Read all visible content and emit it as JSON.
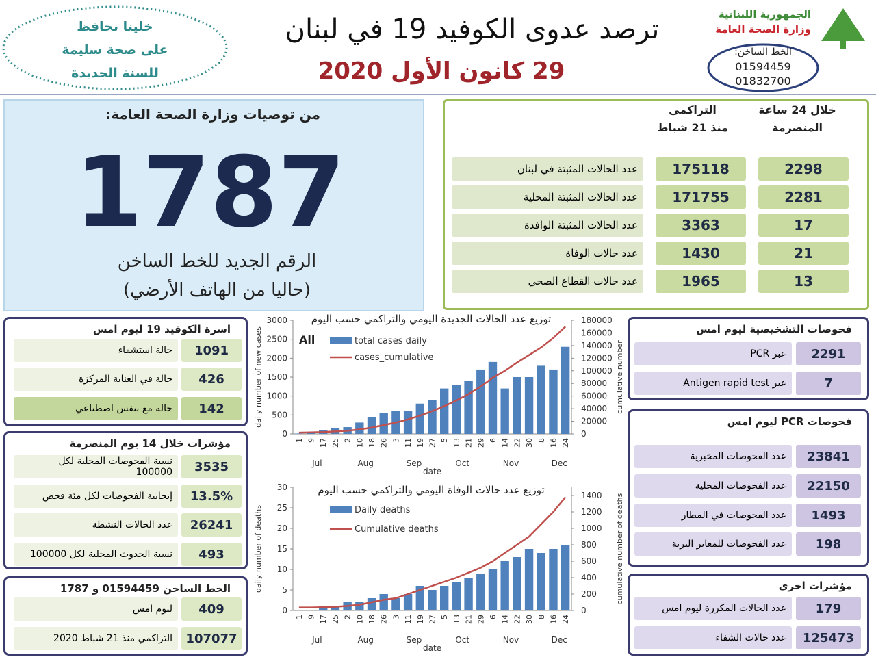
{
  "header": {
    "slogan": [
      "خلينا نحافظ",
      "على صحة سليمة",
      "للسنة الجديدة"
    ],
    "title": "ترصد عدوى الكوفيد 19 في لبنان",
    "date": "29 كانون الأول 2020",
    "ministry": [
      "الجمهورية اللبنانية",
      "وزارة الصحة العامة"
    ],
    "hotline_label": "الخط الساخن:",
    "hotline_numbers": [
      "01594459",
      "01832700"
    ]
  },
  "hotline_notice": {
    "title": "من توصيات وزارة الصحة العامة:",
    "number": "1787",
    "lines": [
      "الرقم الجديد للخط الساخن",
      "(حاليا من الهاتف الأرضي)"
    ]
  },
  "summary": {
    "headers": [
      [
        "خلال 24 ساعة",
        "المنصرمة"
      ],
      [
        "التراكمي",
        "منذ 21 شباط"
      ]
    ],
    "rows": [
      [
        "عدد الحالات المثبتة في لبنان",
        "175118",
        "2298"
      ],
      [
        "عدد الحالات المثبتة المحلية",
        "171755",
        "2281"
      ],
      [
        "عدد الحالات المثبتة الوافدة",
        "3363",
        "17"
      ],
      [
        "عدد حالات الوفاة",
        "1430",
        "21"
      ],
      [
        "عدد حالات القطاع الصحي",
        "1965",
        "13"
      ]
    ]
  },
  "covid_beds": {
    "title": "اسرة الكوفيد 19 ليوم امس",
    "rows": [
      [
        "حالة استشفاء",
        "1091"
      ],
      [
        "حالة في العناية المركزة",
        "426"
      ],
      [
        "حالة مع تنفس اصطناعي",
        "142"
      ]
    ]
  },
  "indicators_14d": {
    "title": "مؤشرات خلال 14 يوم المنصرمة",
    "rows": [
      [
        "نسبة الفحوصات المحلية لكل 100000",
        "3535"
      ],
      [
        "إيجابية الفحوصات لكل مئة فحص",
        "13.5%"
      ],
      [
        "عدد الحالات النشطة",
        "26241"
      ],
      [
        "نسبة الحدوث المحلية لكل 100000",
        "493"
      ]
    ]
  },
  "hotline_calls": {
    "title": "الخط الساخن 01594459 و 1787",
    "rows": [
      [
        "ليوم امس",
        "409"
      ],
      [
        "التراكمي منذ 21 شباط 2020",
        "107077"
      ]
    ]
  },
  "diagnostic_tests": {
    "title": "فحوصات التشخيصية ليوم امس",
    "rows": [
      [
        "عبر PCR",
        "2291"
      ],
      [
        "عبر Antigen rapid test",
        "7"
      ]
    ]
  },
  "pcr_tests": {
    "title": "فحوصات PCR ليوم امس",
    "rows": [
      [
        "عدد الفحوصات المخبرية",
        "23841"
      ],
      [
        "عدد الفحوصات المحلية",
        "22150"
      ],
      [
        "عدد الفحوصات في المطار",
        "1493"
      ],
      [
        "عدد الفحوصات للمعابر البرية",
        "198"
      ]
    ]
  },
  "other_indicators": {
    "title": "مؤشرات اخرى",
    "rows": [
      [
        "عدد الحالات المكررة ليوم امس",
        "179"
      ],
      [
        "عدد حالات الشفاء",
        "125473"
      ]
    ]
  },
  "chart_data": [
    {
      "type": "combo",
      "title": "توزيع عدد الحالات الجديدة اليومي والتراكمي حسب اليوم",
      "annotation": "All",
      "categories": [
        "1",
        "9",
        "17",
        "25",
        "2",
        "10",
        "18",
        "26",
        "3",
        "11",
        "19",
        "27",
        "5",
        "13",
        "21",
        "29",
        "6",
        "14",
        "22",
        "30",
        "8",
        "16",
        "24"
      ],
      "months": [
        "Jul",
        "Aug",
        "Sep",
        "Oct",
        "Nov",
        "Dec"
      ],
      "xlabel": "date",
      "ylabel": "daily number of new cases",
      "y2label": "cumulative number",
      "ylim": [
        0,
        3000
      ],
      "yticks": [
        0,
        500,
        1000,
        1500,
        2000,
        2500,
        3000
      ],
      "y2lim": [
        0,
        180000
      ],
      "y2ticks": [
        0,
        20000,
        40000,
        60000,
        80000,
        100000,
        120000,
        140000,
        160000,
        180000
      ],
      "legend": "upper left",
      "series": [
        {
          "name": "total cases daily",
          "type": "bar",
          "color": "#4f81bd",
          "values": [
            10,
            30,
            100,
            150,
            180,
            300,
            450,
            550,
            600,
            600,
            800,
            900,
            1200,
            1300,
            1400,
            1700,
            1900,
            1200,
            1500,
            1500,
            1800,
            1700,
            2300
          ]
        },
        {
          "name": "cases_cumulative",
          "type": "line",
          "axis": "y2",
          "color": "#c0504d",
          "values": [
            2000,
            2500,
            3000,
            4000,
            5000,
            7000,
            10000,
            14000,
            18000,
            23000,
            29000,
            36000,
            44000,
            53000,
            63000,
            75000,
            89000,
            100000,
            113000,
            125000,
            137000,
            152000,
            170000
          ]
        }
      ]
    },
    {
      "type": "combo",
      "title": "توزيع عدد حالات الوفاة اليومي والتراكمي حسب اليوم",
      "categories": [
        "1",
        "9",
        "17",
        "25",
        "2",
        "10",
        "18",
        "26",
        "3",
        "11",
        "19",
        "27",
        "5",
        "13",
        "21",
        "29",
        "6",
        "14",
        "22",
        "30",
        "8",
        "16",
        "24"
      ],
      "months": [
        "Jul",
        "Aug",
        "Sep",
        "Oct",
        "Nov",
        "Dec"
      ],
      "xlabel": "date",
      "ylabel": "daily number of deaths",
      "y2label": "cumulative number of deaths",
      "ylim": [
        0,
        30
      ],
      "yticks": [
        0,
        5,
        10,
        15,
        20,
        25,
        30
      ],
      "y2lim": [
        0,
        1500
      ],
      "y2ticks": [
        0,
        200,
        400,
        600,
        800,
        1000,
        1200,
        1400
      ],
      "legend": "upper left",
      "series": [
        {
          "name": "Daily deaths",
          "type": "bar",
          "color": "#4f81bd",
          "values": [
            0,
            0,
            1,
            1,
            2,
            2,
            3,
            4,
            3,
            4,
            6,
            5,
            6,
            7,
            8,
            9,
            10,
            12,
            13,
            15,
            14,
            15,
            16
          ]
        },
        {
          "name": "Cumulative deaths",
          "type": "line",
          "axis": "y2",
          "color": "#c0504d",
          "values": [
            36,
            36,
            40,
            45,
            55,
            70,
            100,
            130,
            150,
            200,
            250,
            300,
            350,
            400,
            460,
            520,
            600,
            700,
            800,
            900,
            1050,
            1200,
            1380
          ]
        }
      ]
    }
  ]
}
